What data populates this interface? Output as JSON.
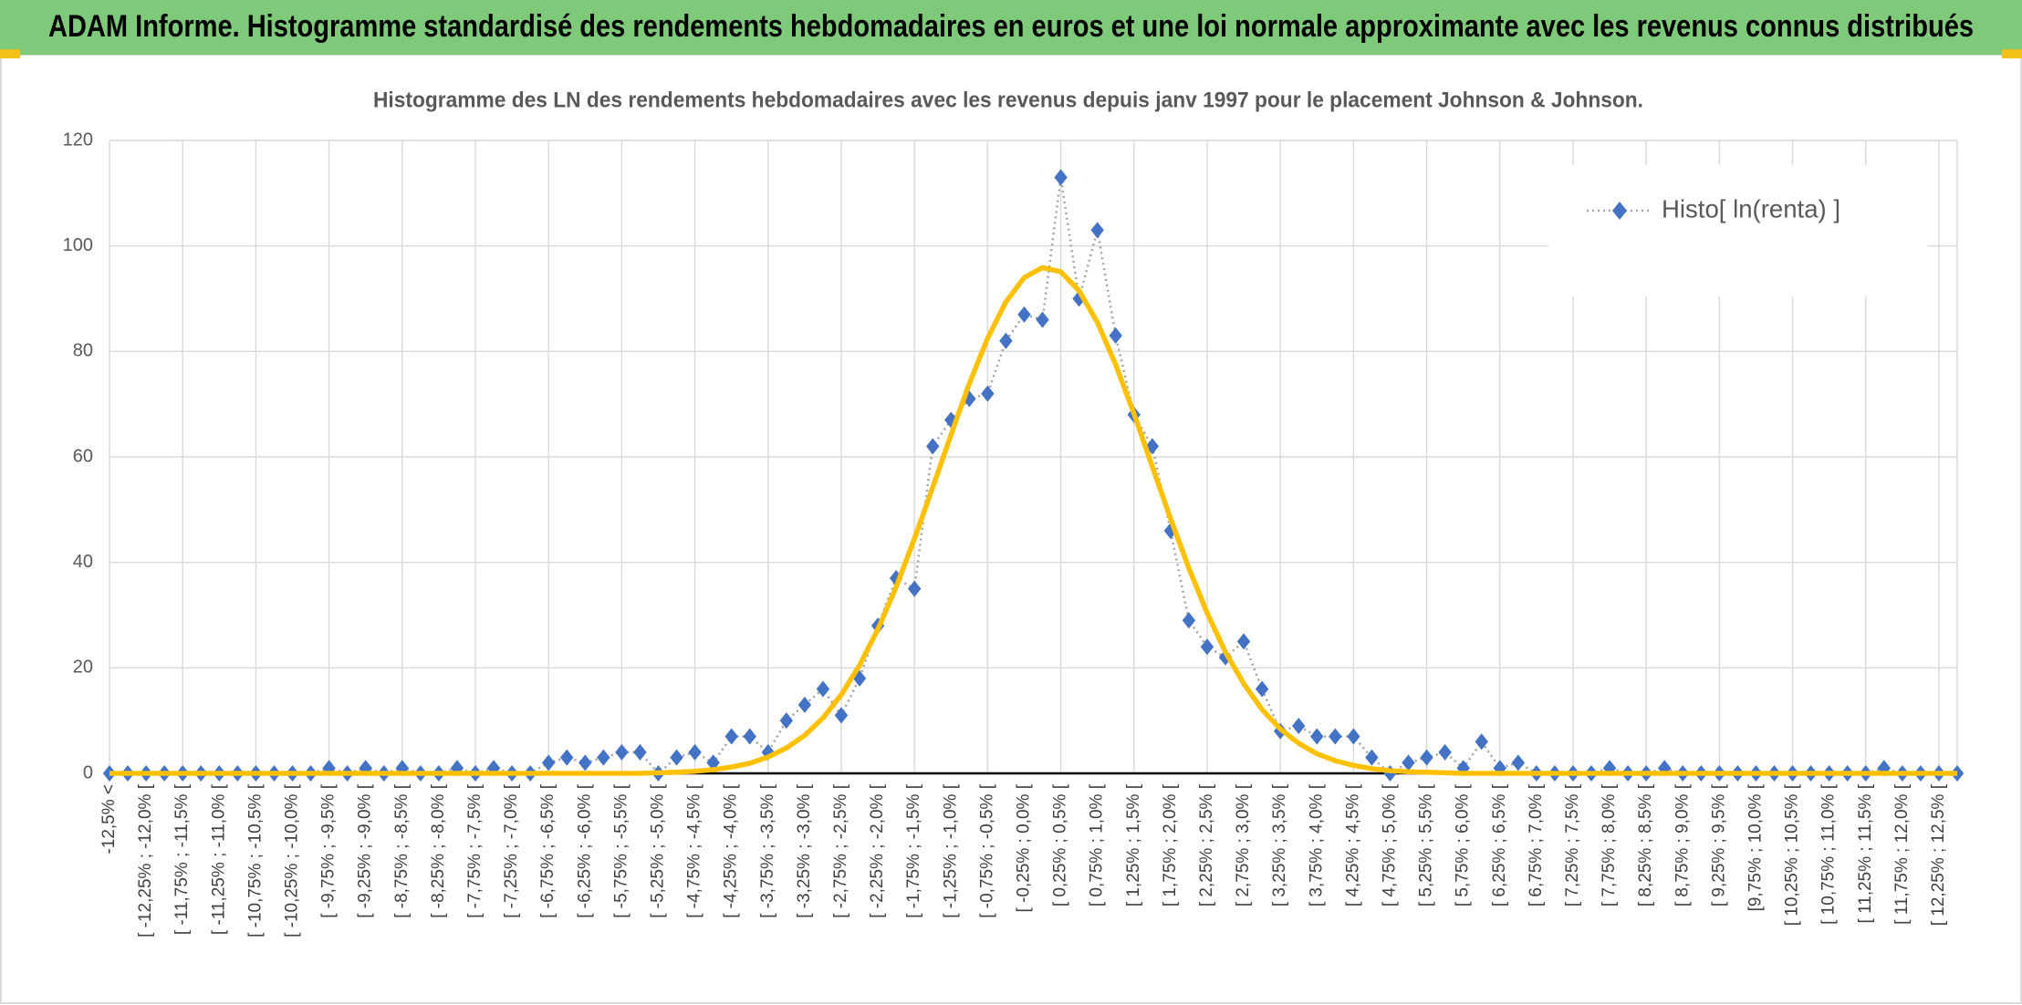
{
  "header": {
    "title": "ADAM Informe. Histogramme standardisé des rendements hebdomadaires en euros et une loi normale approximante avec les revenus connus distribués"
  },
  "chart_data": {
    "type": "line",
    "title": "Histogramme des LN des rendements hebdomadaires avec les revenus depuis janv 1997 pour le placement Johnson & Johnson.",
    "categories": [
      "-12,5% <",
      null,
      "[ -12,25% ; -12,0% [",
      null,
      "[ -11,75% ; -11,5% [",
      null,
      "[ -11,25% ; -11,0% [",
      null,
      "[ -10,75% ; -10,5% [",
      null,
      "[ -10,25% ; -10,0% [",
      null,
      "[ -9,75% ; -9,5% [",
      null,
      "[ -9,25% ; -9,0% [",
      null,
      "[ -8,75% ; -8,5% [",
      null,
      "[ -8,25% ; -8,0% [",
      null,
      "[ -7,75% ; -7,5% [",
      null,
      "[ -7,25% ; -7,0% [",
      null,
      "[ -6,75% ; -6,5% [",
      null,
      "[ -6,25% ; -6,0% [",
      null,
      "[ -5,75% ; -5,5% [",
      null,
      "[ -5,25% ; -5,0% [",
      null,
      "[ -4,75% ; -4,5% [",
      null,
      "[ -4,25% ; -4,0% [",
      null,
      "[ -3,75% ; -3,5% [",
      null,
      "[ -3,25% ; -3,0% [",
      null,
      "[ -2,75% ; -2,5% [",
      null,
      "[ -2,25% ; -2,0% [",
      null,
      "[ -1,75% ; -1,5% [",
      null,
      "[ -1,25% ; -1,0% [",
      null,
      "[ -0,75% ; -0,5% [",
      null,
      "[ -0,25% ; 0,0% [",
      null,
      "[ 0,25% ; 0,5% [",
      null,
      "[ 0,75% ; 1,0% [",
      null,
      "[ 1,25% ; 1,5% [",
      null,
      "[ 1,75% ; 2,0% [",
      null,
      "[ 2,25% ; 2,5% [",
      null,
      "[ 2,75% ; 3,0% [",
      null,
      "[ 3,25% ; 3,5% [",
      null,
      "[ 3,75% ; 4,0% [",
      null,
      "[ 4,25% ; 4,5% [",
      null,
      "[ 4,75% ; 5,0% [",
      null,
      "[ 5,25% ; 5,5% [",
      null,
      "[ 5,75% ; 6,0% [",
      null,
      "[ 6,25% ; 6,5% [",
      null,
      "[ 6,75% ; 7,0% [",
      null,
      "[ 7,25% ; 7,5% [",
      null,
      "[ 7,75% ; 8,0% [",
      null,
      "[ 8,25% ; 8,5% [",
      null,
      "[ 8,75% ; 9,0% [",
      null,
      "[ 9,25% ; 9,5% [",
      null,
      "[9,75% ; 10,0% [",
      null,
      "[ 10,25% ; 10,5% [",
      null,
      "[ 10,75% ; 11,0% [",
      null,
      "[ 11,25% ; 11,5% [",
      null,
      "[ 11,75% ; 12,0% [",
      null,
      "[ 12,25% ; 12,5% [",
      null
    ],
    "series": [
      {
        "name": "Histo[ ln(renta) ]",
        "color": "#4472c4",
        "line_color": "#a5a5a5",
        "values": [
          0,
          0,
          0,
          0,
          0,
          0,
          0,
          0,
          0,
          0,
          0,
          0,
          1,
          0,
          1,
          0,
          1,
          0,
          0,
          1,
          0,
          1,
          0,
          0,
          2,
          3,
          2,
          3,
          4,
          4,
          0,
          3,
          4,
          2,
          7,
          7,
          4,
          10,
          13,
          16,
          11,
          18,
          28,
          37,
          35,
          62,
          67,
          71,
          72,
          82,
          87,
          86,
          113,
          90,
          103,
          83,
          68,
          62,
          46,
          29,
          24,
          22,
          25,
          16,
          8,
          9,
          7,
          7,
          7,
          3,
          0,
          2,
          3,
          4,
          1,
          6,
          1,
          2,
          0,
          0,
          0,
          0,
          1,
          0,
          0,
          1,
          0,
          0,
          0,
          0,
          0,
          0,
          0,
          0,
          0,
          0,
          0,
          1,
          0,
          0,
          0,
          0
        ]
      },
      {
        "color": "#ffc000",
        "values": [
          0,
          0,
          0,
          0,
          0,
          0,
          0,
          0,
          0,
          0,
          0,
          0,
          0,
          0,
          0,
          0,
          0,
          0,
          0,
          0,
          0,
          0,
          0,
          0,
          0,
          0,
          0,
          0,
          0,
          0,
          0.1,
          0.2,
          0.4,
          0.7,
          1.2,
          1.9,
          3.1,
          4.8,
          7.2,
          10.5,
          14.9,
          20.5,
          27.3,
          35.3,
          44.5,
          54.2,
          64.2,
          73.9,
          82.5,
          89.4,
          94,
          95.9,
          95.1,
          91.5,
          85.5,
          77.5,
          68.2,
          58.2,
          48.3,
          38.9,
          30.4,
          23,
          17,
          12.1,
          8.4,
          5.7,
          3.7,
          2.4,
          1.5,
          0.9,
          0.5,
          0.3,
          0.2,
          0.1,
          0,
          0,
          0,
          0,
          0,
          0,
          0,
          0,
          0,
          0,
          0,
          0,
          0,
          0,
          0,
          0,
          0,
          0,
          0,
          0,
          0,
          0,
          0,
          0,
          0,
          0,
          0,
          0
        ]
      }
    ],
    "ylim": [
      0,
      120
    ],
    "yticks": [
      0,
      20,
      40,
      60,
      80,
      100,
      120
    ],
    "grid": true,
    "legend": "upper right"
  }
}
